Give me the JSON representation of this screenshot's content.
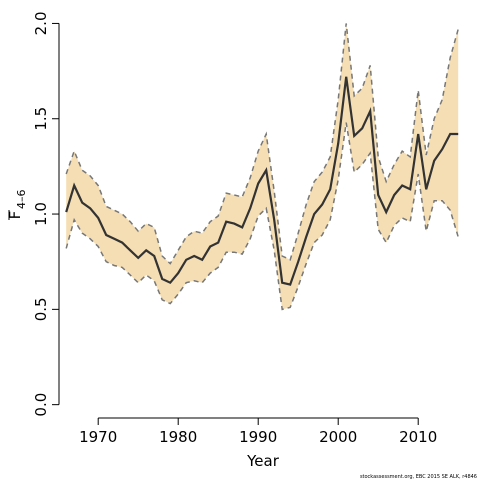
{
  "chart_data": {
    "type": "line",
    "xlabel": "Year",
    "ylabel": "F",
    "ylabel_subscript": "4–6",
    "footer": "stockassessment.org, EBC 2015 SE ALK, r4846",
    "x": [
      1966,
      1967,
      1968,
      1969,
      1970,
      1971,
      1972,
      1973,
      1974,
      1975,
      1976,
      1977,
      1978,
      1979,
      1980,
      1981,
      1982,
      1983,
      1984,
      1985,
      1986,
      1987,
      1988,
      1989,
      1990,
      1991,
      1992,
      1993,
      1994,
      1995,
      1996,
      1997,
      1998,
      1999,
      2000,
      2001,
      2002,
      2003,
      2004,
      2005,
      2006,
      2007,
      2008,
      2009,
      2010,
      2011,
      2012,
      2013,
      2014,
      2015
    ],
    "values": [
      1.01,
      1.15,
      1.06,
      1.03,
      0.98,
      0.89,
      0.87,
      0.85,
      0.81,
      0.77,
      0.81,
      0.78,
      0.66,
      0.64,
      0.69,
      0.76,
      0.78,
      0.76,
      0.83,
      0.85,
      0.96,
      0.95,
      0.93,
      1.03,
      1.16,
      1.23,
      0.97,
      0.64,
      0.63,
      0.75,
      0.88,
      1.0,
      1.05,
      1.13,
      1.37,
      1.72,
      1.41,
      1.45,
      1.54,
      1.1,
      1.01,
      1.1,
      1.15,
      1.13,
      1.42,
      1.13,
      1.28,
      1.34,
      1.42,
      1.42
    ],
    "upper": [
      1.21,
      1.33,
      1.23,
      1.2,
      1.15,
      1.04,
      1.02,
      1.0,
      0.96,
      0.91,
      0.95,
      0.93,
      0.78,
      0.74,
      0.81,
      0.88,
      0.91,
      0.9,
      0.96,
      0.99,
      1.11,
      1.1,
      1.09,
      1.19,
      1.33,
      1.42,
      1.12,
      0.78,
      0.76,
      0.9,
      1.05,
      1.17,
      1.22,
      1.3,
      1.6,
      2.0,
      1.62,
      1.66,
      1.78,
      1.3,
      1.17,
      1.26,
      1.33,
      1.3,
      1.65,
      1.31,
      1.5,
      1.6,
      1.82,
      1.97
    ],
    "lower": [
      0.82,
      0.97,
      0.9,
      0.87,
      0.83,
      0.75,
      0.73,
      0.72,
      0.68,
      0.64,
      0.68,
      0.65,
      0.55,
      0.53,
      0.58,
      0.64,
      0.65,
      0.64,
      0.69,
      0.72,
      0.8,
      0.8,
      0.79,
      0.87,
      0.99,
      1.03,
      0.81,
      0.5,
      0.51,
      0.62,
      0.74,
      0.85,
      0.89,
      0.97,
      1.18,
      1.48,
      1.22,
      1.26,
      1.32,
      0.92,
      0.85,
      0.94,
      0.98,
      0.96,
      1.21,
      0.91,
      1.07,
      1.07,
      1.02,
      0.88
    ],
    "color": "#333333",
    "band_color": "#f5deb3",
    "band_edge_color": "#777777",
    "xlim": [
      1965.1,
      2016.1
    ],
    "ylim": [
      -0.07,
      2.06
    ],
    "xticks": [
      1970,
      1980,
      1990,
      2000,
      2010
    ],
    "yticks": [
      {
        "value": 0,
        "label": "0.0"
      },
      0.5,
      {
        "value": 1,
        "label": "1.0"
      },
      1.5,
      {
        "value": 2,
        "label": "2.0"
      }
    ]
  }
}
